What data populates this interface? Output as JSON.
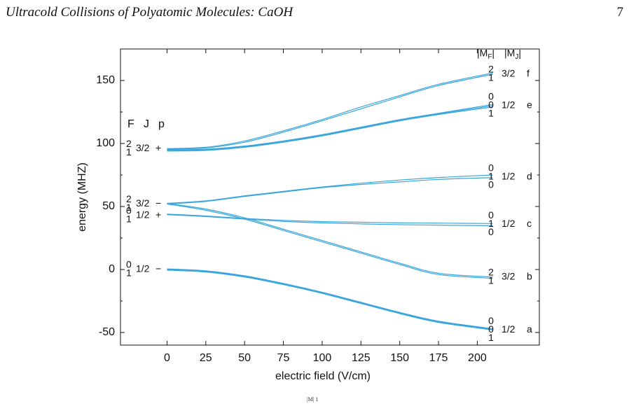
{
  "header": {
    "running_title": "Ultracold Collisions of Polyatomic Molecules: CaOH",
    "page_number": "7"
  },
  "chart_data": {
    "type": "line",
    "xlabel": "electric field (V/cm)",
    "ylabel": "energy (MHZ)",
    "xlim": [
      -30,
      240
    ],
    "ylim": [
      -60,
      175
    ],
    "x_ticks": [
      "0",
      "25",
      "50",
      "75",
      "100",
      "125",
      "150",
      "175",
      "200"
    ],
    "y_ticks": [
      "-50",
      "0",
      "50",
      "100",
      "150"
    ],
    "series_color": "#3aa6dc",
    "left_header": {
      "F": "F",
      "J": "J",
      "p": "p"
    },
    "right_header": {
      "mf": "|M",
      "mf_sub": "F",
      "mj": "|M",
      "mj_sub": "J"
    },
    "left_labels": [
      {
        "f_top": "2",
        "f_bottom": "1",
        "j": "3/2",
        "p": "+",
        "y": 96
      },
      {
        "f_top": "2",
        "f_bottom": "1",
        "j": "3/2",
        "p": "−",
        "y": 52
      },
      {
        "f_top": "0",
        "f_bottom": "1",
        "j": "1/2",
        "p": "+",
        "y": 43
      },
      {
        "f_top": "0",
        "f_bottom": "1",
        "j": "1/2",
        "p": "−",
        "y": 0
      }
    ],
    "right_labels": [
      {
        "mf": [
          "2",
          "1"
        ],
        "mj": "3/2",
        "letter": "f",
        "y": 155
      },
      {
        "mf": [
          "0",
          "0",
          "1"
        ],
        "mj": "1/2",
        "letter": "e",
        "y": 130
      },
      {
        "mf": [
          "0",
          "1",
          "0"
        ],
        "mj": "1/2",
        "letter": "d",
        "y": 73.5
      },
      {
        "mf": [
          "0",
          "1",
          "0"
        ],
        "mj": "1/2",
        "letter": "c",
        "y": 36
      },
      {
        "mf": [
          "2",
          "1"
        ],
        "mj": "3/2",
        "letter": "b",
        "y": -6
      },
      {
        "mf": [
          "0",
          "0",
          "1"
        ],
        "mj": "1/2",
        "letter": "a",
        "y": -48
      }
    ],
    "series": [
      {
        "x": [
          0,
          25,
          50,
          75,
          100,
          125,
          150,
          175,
          210
        ],
        "y": [
          96,
          97,
          102,
          110,
          119,
          129,
          138,
          147,
          156
        ]
      },
      {
        "x": [
          0,
          25,
          50,
          75,
          100,
          125,
          150,
          175,
          210
        ],
        "y": [
          95.5,
          96.5,
          101,
          109,
          118,
          127.5,
          137,
          146,
          155
        ]
      },
      {
        "x": [
          0,
          25,
          50,
          75,
          100,
          125,
          150,
          175,
          210
        ],
        "y": [
          95,
          95.5,
          98,
          102,
          107,
          113,
          119,
          124,
          131
        ]
      },
      {
        "x": [
          0,
          25,
          50,
          75,
          100,
          125,
          150,
          175,
          210
        ],
        "y": [
          94.5,
          95,
          97.5,
          101.5,
          106.5,
          112.5,
          118.5,
          123.5,
          130
        ]
      },
      {
        "x": [
          0,
          25,
          50,
          75,
          100,
          125,
          150,
          175,
          210
        ],
        "y": [
          94,
          94.5,
          97,
          101,
          106,
          112,
          118,
          123,
          129
        ]
      },
      {
        "x": [
          0,
          25,
          50,
          75,
          100,
          125,
          150,
          175,
          210
        ],
        "y": [
          52.5,
          54.5,
          58.5,
          62,
          65.5,
          68.5,
          71,
          73,
          75
        ]
      },
      {
        "x": [
          0,
          25,
          50,
          75,
          100,
          125,
          150,
          175,
          210
        ],
        "y": [
          52,
          54,
          58,
          61.5,
          65,
          67.5,
          69.5,
          71.5,
          73
        ]
      },
      {
        "x": [
          0,
          25,
          50,
          75,
          100,
          125,
          150,
          175,
          210
        ],
        "y": [
          52.5,
          48,
          41,
          32,
          23,
          14,
          5,
          -3,
          -6
        ]
      },
      {
        "x": [
          0,
          25,
          50,
          75,
          100,
          125,
          150,
          175,
          210
        ],
        "y": [
          52,
          47,
          40,
          31,
          22,
          13,
          4,
          -4,
          -7
        ]
      },
      {
        "x": [
          0,
          25,
          50,
          75,
          100,
          125,
          150,
          175,
          210
        ],
        "y": [
          44,
          42.5,
          40.5,
          39,
          38,
          37.5,
          37,
          36.8,
          36.5
        ]
      },
      {
        "x": [
          0,
          25,
          50,
          75,
          100,
          125,
          150,
          175,
          210
        ],
        "y": [
          43.5,
          42,
          40,
          38.2,
          37,
          36.2,
          35.6,
          35.2,
          34.8
        ]
      },
      {
        "x": [
          0,
          25,
          50,
          75,
          100,
          125,
          150,
          175,
          210
        ],
        "y": [
          0.5,
          -1,
          -5,
          -11,
          -18,
          -26,
          -34,
          -41,
          -47
        ]
      },
      {
        "x": [
          0,
          25,
          50,
          75,
          100,
          125,
          150,
          175,
          210
        ],
        "y": [
          0,
          -1.5,
          -5.5,
          -11.5,
          -18.5,
          -26.5,
          -34.5,
          -41.5,
          -47.5
        ]
      },
      {
        "x": [
          0,
          25,
          50,
          75,
          100,
          125,
          150,
          175,
          210
        ],
        "y": [
          -0.5,
          -2,
          -6,
          -12,
          -19,
          -27,
          -35,
          -42,
          -48
        ]
      }
    ]
  },
  "footer_fragment": "|M| 1"
}
